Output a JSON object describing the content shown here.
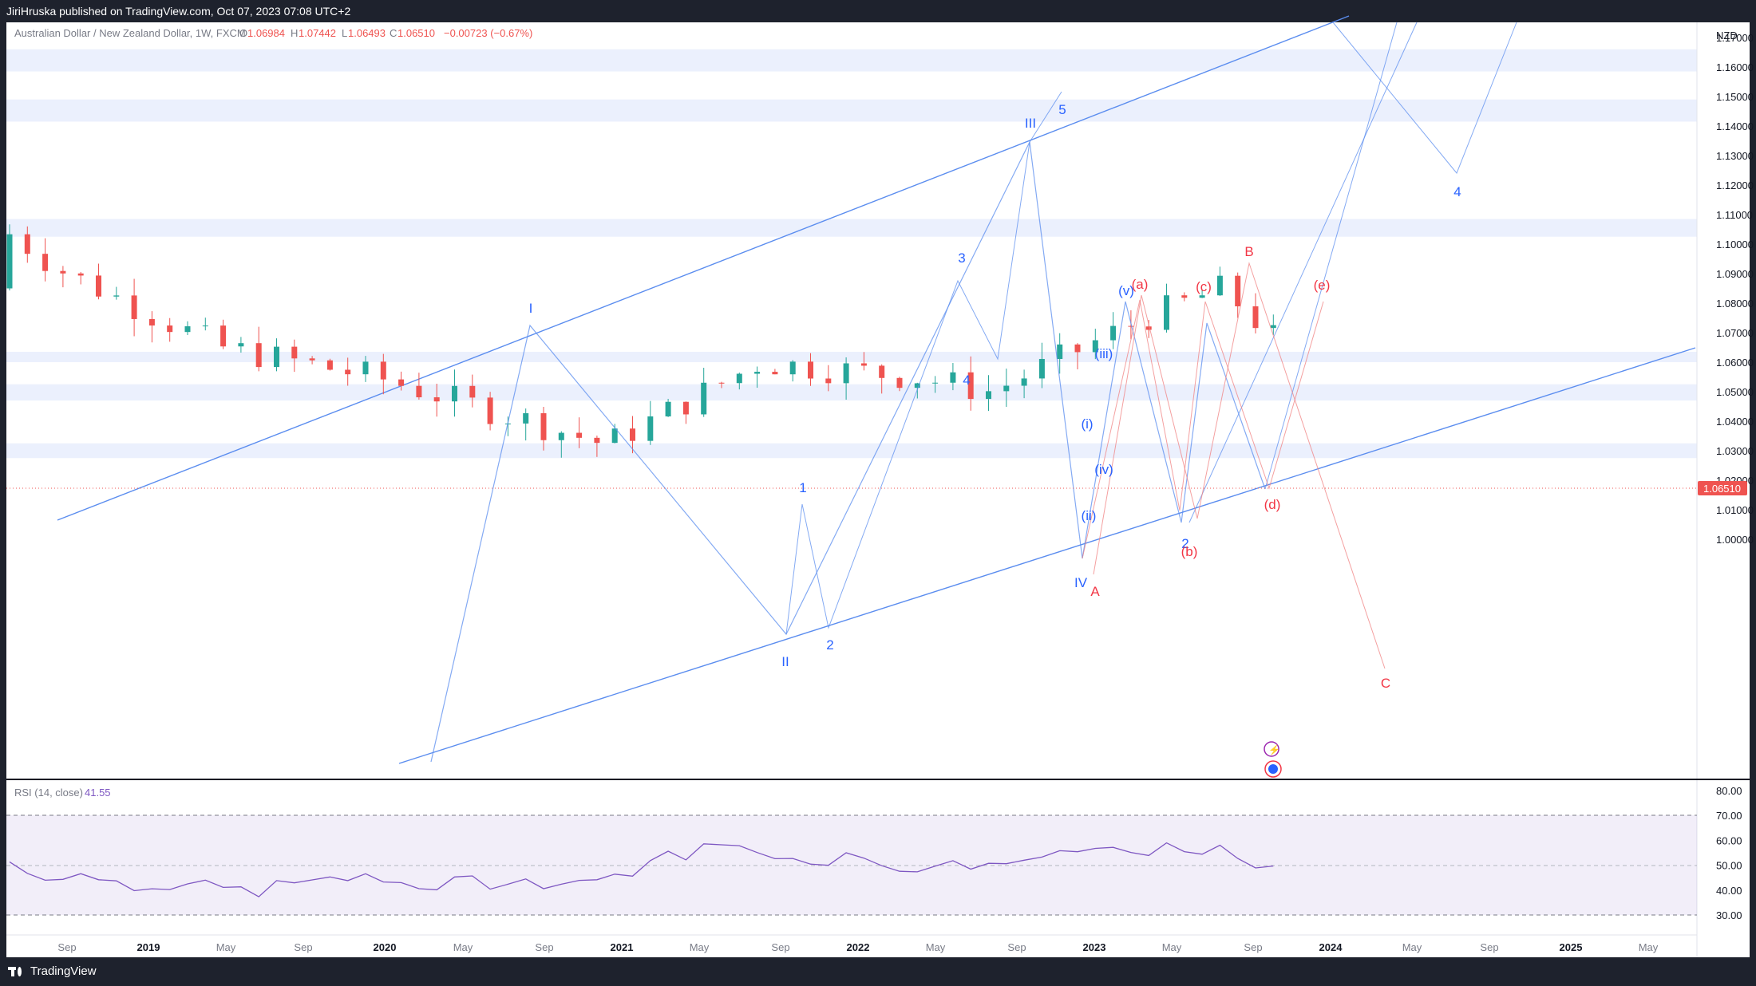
{
  "header": {
    "publisher": "JiriHruska published on TradingView.com, Oct 07, 2023 07:08 UTC+2"
  },
  "legend": {
    "symbol": "Australian Dollar / New Zealand Dollar, 1W, FXCM",
    "o_label": "O",
    "o_value": "1.06984",
    "h_label": "H",
    "h_value": "1.07442",
    "l_label": "L",
    "l_value": "1.06493",
    "c_label": "C",
    "c_value": "1.06510",
    "change": "−0.00723 (−0.67%)"
  },
  "currency": "NZD",
  "last_price": "1.06510",
  "rsi": {
    "label": "RSI (14, close)",
    "value": "41.55"
  },
  "footer": {
    "brand": "TradingView"
  },
  "colors": {
    "up": "#26a69a",
    "down": "#ef5350",
    "impulse": "#2962ff",
    "corrective": "#f23645",
    "rsi": "#7e57c2",
    "zone": "#dbe3fb"
  },
  "chart_data": {
    "type": "candlestick",
    "ylim": [
      0.995,
      1.175
    ],
    "price_ticks": [
      "1.17000",
      "1.16000",
      "1.15000",
      "1.14000",
      "1.13000",
      "1.12000",
      "1.11000",
      "1.10000",
      "1.09000",
      "1.08000",
      "1.07000",
      "1.06000",
      "1.05000",
      "1.04000",
      "1.03000",
      "1.02000",
      "1.01000",
      "1.00000"
    ],
    "time_axis": [
      "Sep",
      "2019",
      "May",
      "Sep",
      "2020",
      "May",
      "Sep",
      "2021",
      "May",
      "Sep",
      "2022",
      "May",
      "Sep",
      "2023",
      "May",
      "Sep",
      "2024",
      "May",
      "Sep",
      "2025",
      "May"
    ],
    "series_close_path": [
      [
        "2018-06",
        1.085
      ],
      [
        "2018-08",
        1.108
      ],
      [
        "2018-09",
        1.09
      ],
      [
        "2018-11",
        1.065
      ],
      [
        "2019-01",
        1.055
      ],
      [
        "2019-03",
        1.04
      ],
      [
        "2019-04",
        1.032
      ],
      [
        "2019-06",
        1.06
      ],
      [
        "2019-08",
        1.055
      ],
      [
        "2019-09",
        1.05
      ],
      [
        "2019-11",
        1.075
      ],
      [
        "2019-12",
        1.085
      ],
      [
        "2020-01",
        1.06
      ],
      [
        "2020-02",
        1.045
      ],
      [
        "2020-03",
        1.038
      ],
      [
        "2020-03-20",
        1.0
      ],
      [
        "2020-05",
        1.062
      ],
      [
        "2020-07",
        1.078
      ],
      [
        "2020-08",
        1.102
      ],
      [
        "2020-10",
        1.075
      ],
      [
        "2020-12",
        1.055
      ],
      [
        "2021-02",
        1.072
      ],
      [
        "2021-04",
        1.085
      ],
      [
        "2021-06",
        1.068
      ],
      [
        "2021-08",
        1.05
      ],
      [
        "2021-09",
        1.028
      ],
      [
        "2021-10",
        1.058
      ],
      [
        "2021-11",
        1.032
      ],
      [
        "2022-01",
        1.065
      ],
      [
        "2022-03",
        1.095
      ],
      [
        "2022-05",
        1.09
      ],
      [
        "2022-07",
        1.11
      ],
      [
        "2022-08",
        1.105
      ],
      [
        "2022-09",
        1.148
      ],
      [
        "2022-10",
        1.11
      ],
      [
        "2022-11",
        1.08
      ],
      [
        "2022-12",
        1.048
      ],
      [
        "2023-01",
        1.095
      ],
      [
        "2023-02",
        1.108
      ],
      [
        "2023-03",
        1.07
      ],
      [
        "2023-04",
        1.08
      ],
      [
        "2023-05",
        1.06
      ],
      [
        "2023-06",
        1.103
      ],
      [
        "2023-07",
        1.075
      ],
      [
        "2023-08",
        1.09
      ],
      [
        "2023-09",
        1.085
      ],
      [
        "2023-10",
        1.0651
      ]
    ],
    "price_zones": [
      [
        1.1585,
        1.166
      ],
      [
        1.1415,
        1.149
      ],
      [
        1.1025,
        1.1085
      ],
      [
        1.06,
        1.0635
      ],
      [
        1.047,
        1.0525
      ],
      [
        1.0275,
        1.0325
      ]
    ],
    "wave_labels_primary": [
      "I",
      "II",
      "III",
      "IV",
      "5",
      "4"
    ],
    "wave_labels_minor": [
      "1",
      "2",
      "3",
      "4",
      "5",
      "2"
    ],
    "wave_labels_sub": [
      "(i)",
      "(ii)",
      "(iii)",
      "(iv)",
      "(v)"
    ],
    "corrective_labels": [
      "A",
      "B",
      "C",
      "(a)",
      "(b)",
      "(c)",
      "(d)",
      "(e)"
    ],
    "rsi_levels": [
      "80.00",
      "70.00",
      "60.00",
      "50.00",
      "40.00",
      "30.00"
    ],
    "rsi_bands": [
      70,
      30
    ],
    "rsi_mid": 50
  }
}
